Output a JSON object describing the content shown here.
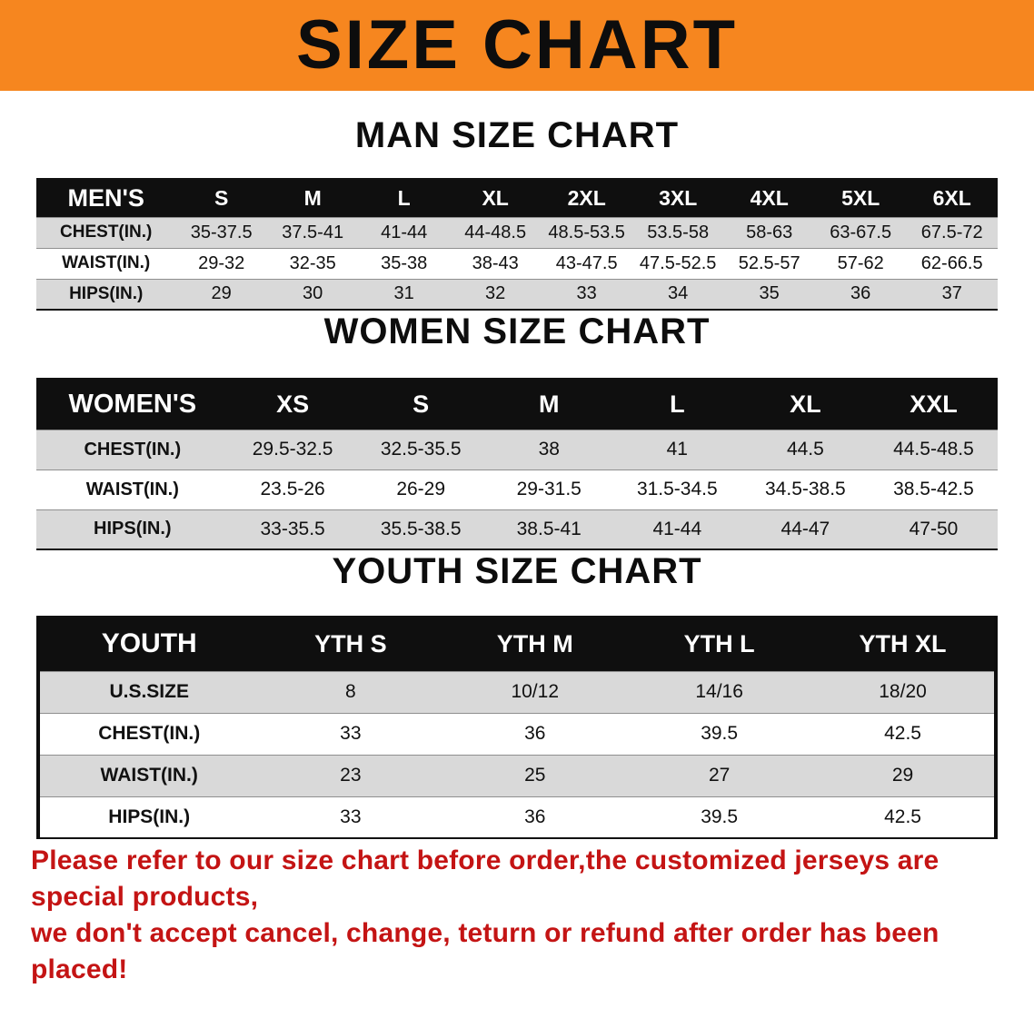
{
  "banner": {
    "title": "SIZE CHART",
    "bg_color": "#f6861f"
  },
  "men": {
    "heading": "MAN SIZE CHART",
    "header": [
      "MEN'S",
      "S",
      "M",
      "L",
      "XL",
      "2XL",
      "3XL",
      "4XL",
      "5XL",
      "6XL"
    ],
    "rows": [
      {
        "label": "CHEST(IN.)",
        "values": [
          "35-37.5",
          "37.5-41",
          "41-44",
          "44-48.5",
          "48.5-53.5",
          "53.5-58",
          "58-63",
          "63-67.5",
          "67.5-72"
        ]
      },
      {
        "label": "WAIST(IN.)",
        "values": [
          "29-32",
          "32-35",
          "35-38",
          "38-43",
          "43-47.5",
          "47.5-52.5",
          "52.5-57",
          "57-62",
          "62-66.5"
        ]
      },
      {
        "label": "HIPS(IN.)",
        "values": [
          "29",
          "30",
          "31",
          "32",
          "33",
          "34",
          "35",
          "36",
          "37"
        ]
      }
    ]
  },
  "women": {
    "heading": "WOMEN SIZE CHART",
    "header": [
      "WOMEN'S",
      "XS",
      "S",
      "M",
      "L",
      "XL",
      "XXL"
    ],
    "rows": [
      {
        "label": "CHEST(IN.)",
        "values": [
          "29.5-32.5",
          "32.5-35.5",
          "38",
          "41",
          "44.5",
          "44.5-48.5"
        ]
      },
      {
        "label": "WAIST(IN.)",
        "values": [
          "23.5-26",
          "26-29",
          "29-31.5",
          "31.5-34.5",
          "34.5-38.5",
          "38.5-42.5"
        ]
      },
      {
        "label": "HIPS(IN.)",
        "values": [
          "33-35.5",
          "35.5-38.5",
          "38.5-41",
          "41-44",
          "44-47",
          "47-50"
        ]
      }
    ]
  },
  "youth": {
    "heading": "YOUTH SIZE CHART",
    "header": [
      "YOUTH",
      "YTH S",
      "YTH M",
      "YTH L",
      "YTH XL"
    ],
    "rows": [
      {
        "label": "U.S.SIZE",
        "values": [
          "8",
          "10/12",
          "14/16",
          "18/20"
        ]
      },
      {
        "label": "CHEST(IN.)",
        "values": [
          "33",
          "36",
          "39.5",
          "42.5"
        ]
      },
      {
        "label": "WAIST(IN.)",
        "values": [
          "23",
          "25",
          "27",
          "29"
        ]
      },
      {
        "label": "HIPS(IN.)",
        "values": [
          "33",
          "36",
          "39.5",
          "42.5"
        ]
      }
    ]
  },
  "disclaimer": {
    "line1": "Please refer to our size chart before order,the customized jerseys are special products,",
    "line2": "we don't accept cancel, change, teturn or refund after order has been placed!",
    "text_color": "#c41414"
  }
}
